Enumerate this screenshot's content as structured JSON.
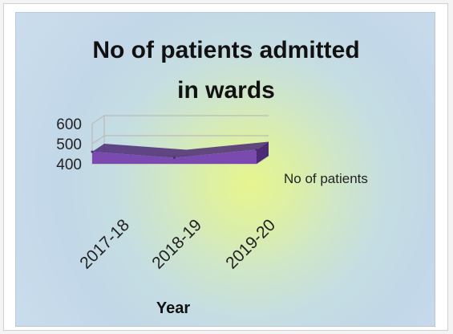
{
  "chart_data": {
    "type": "area",
    "title_line1": "No of patients  admitted",
    "title_line2": "in wards",
    "categories": [
      "2017-18",
      "2018-19",
      "2019-20"
    ],
    "series": [
      {
        "name": "No of patients",
        "values": [
          460,
          430,
          470
        ]
      }
    ],
    "yticks": [
      "600",
      "500",
      "400"
    ],
    "ylim": [
      400,
      600
    ],
    "xlabel": "Year",
    "ylabel": "",
    "grid": true,
    "three_d": true,
    "legend_position": "right",
    "colors": {
      "series": "#7a4ab0",
      "series_dark": "#4b2a76",
      "grid": "#bbbbbb"
    }
  }
}
